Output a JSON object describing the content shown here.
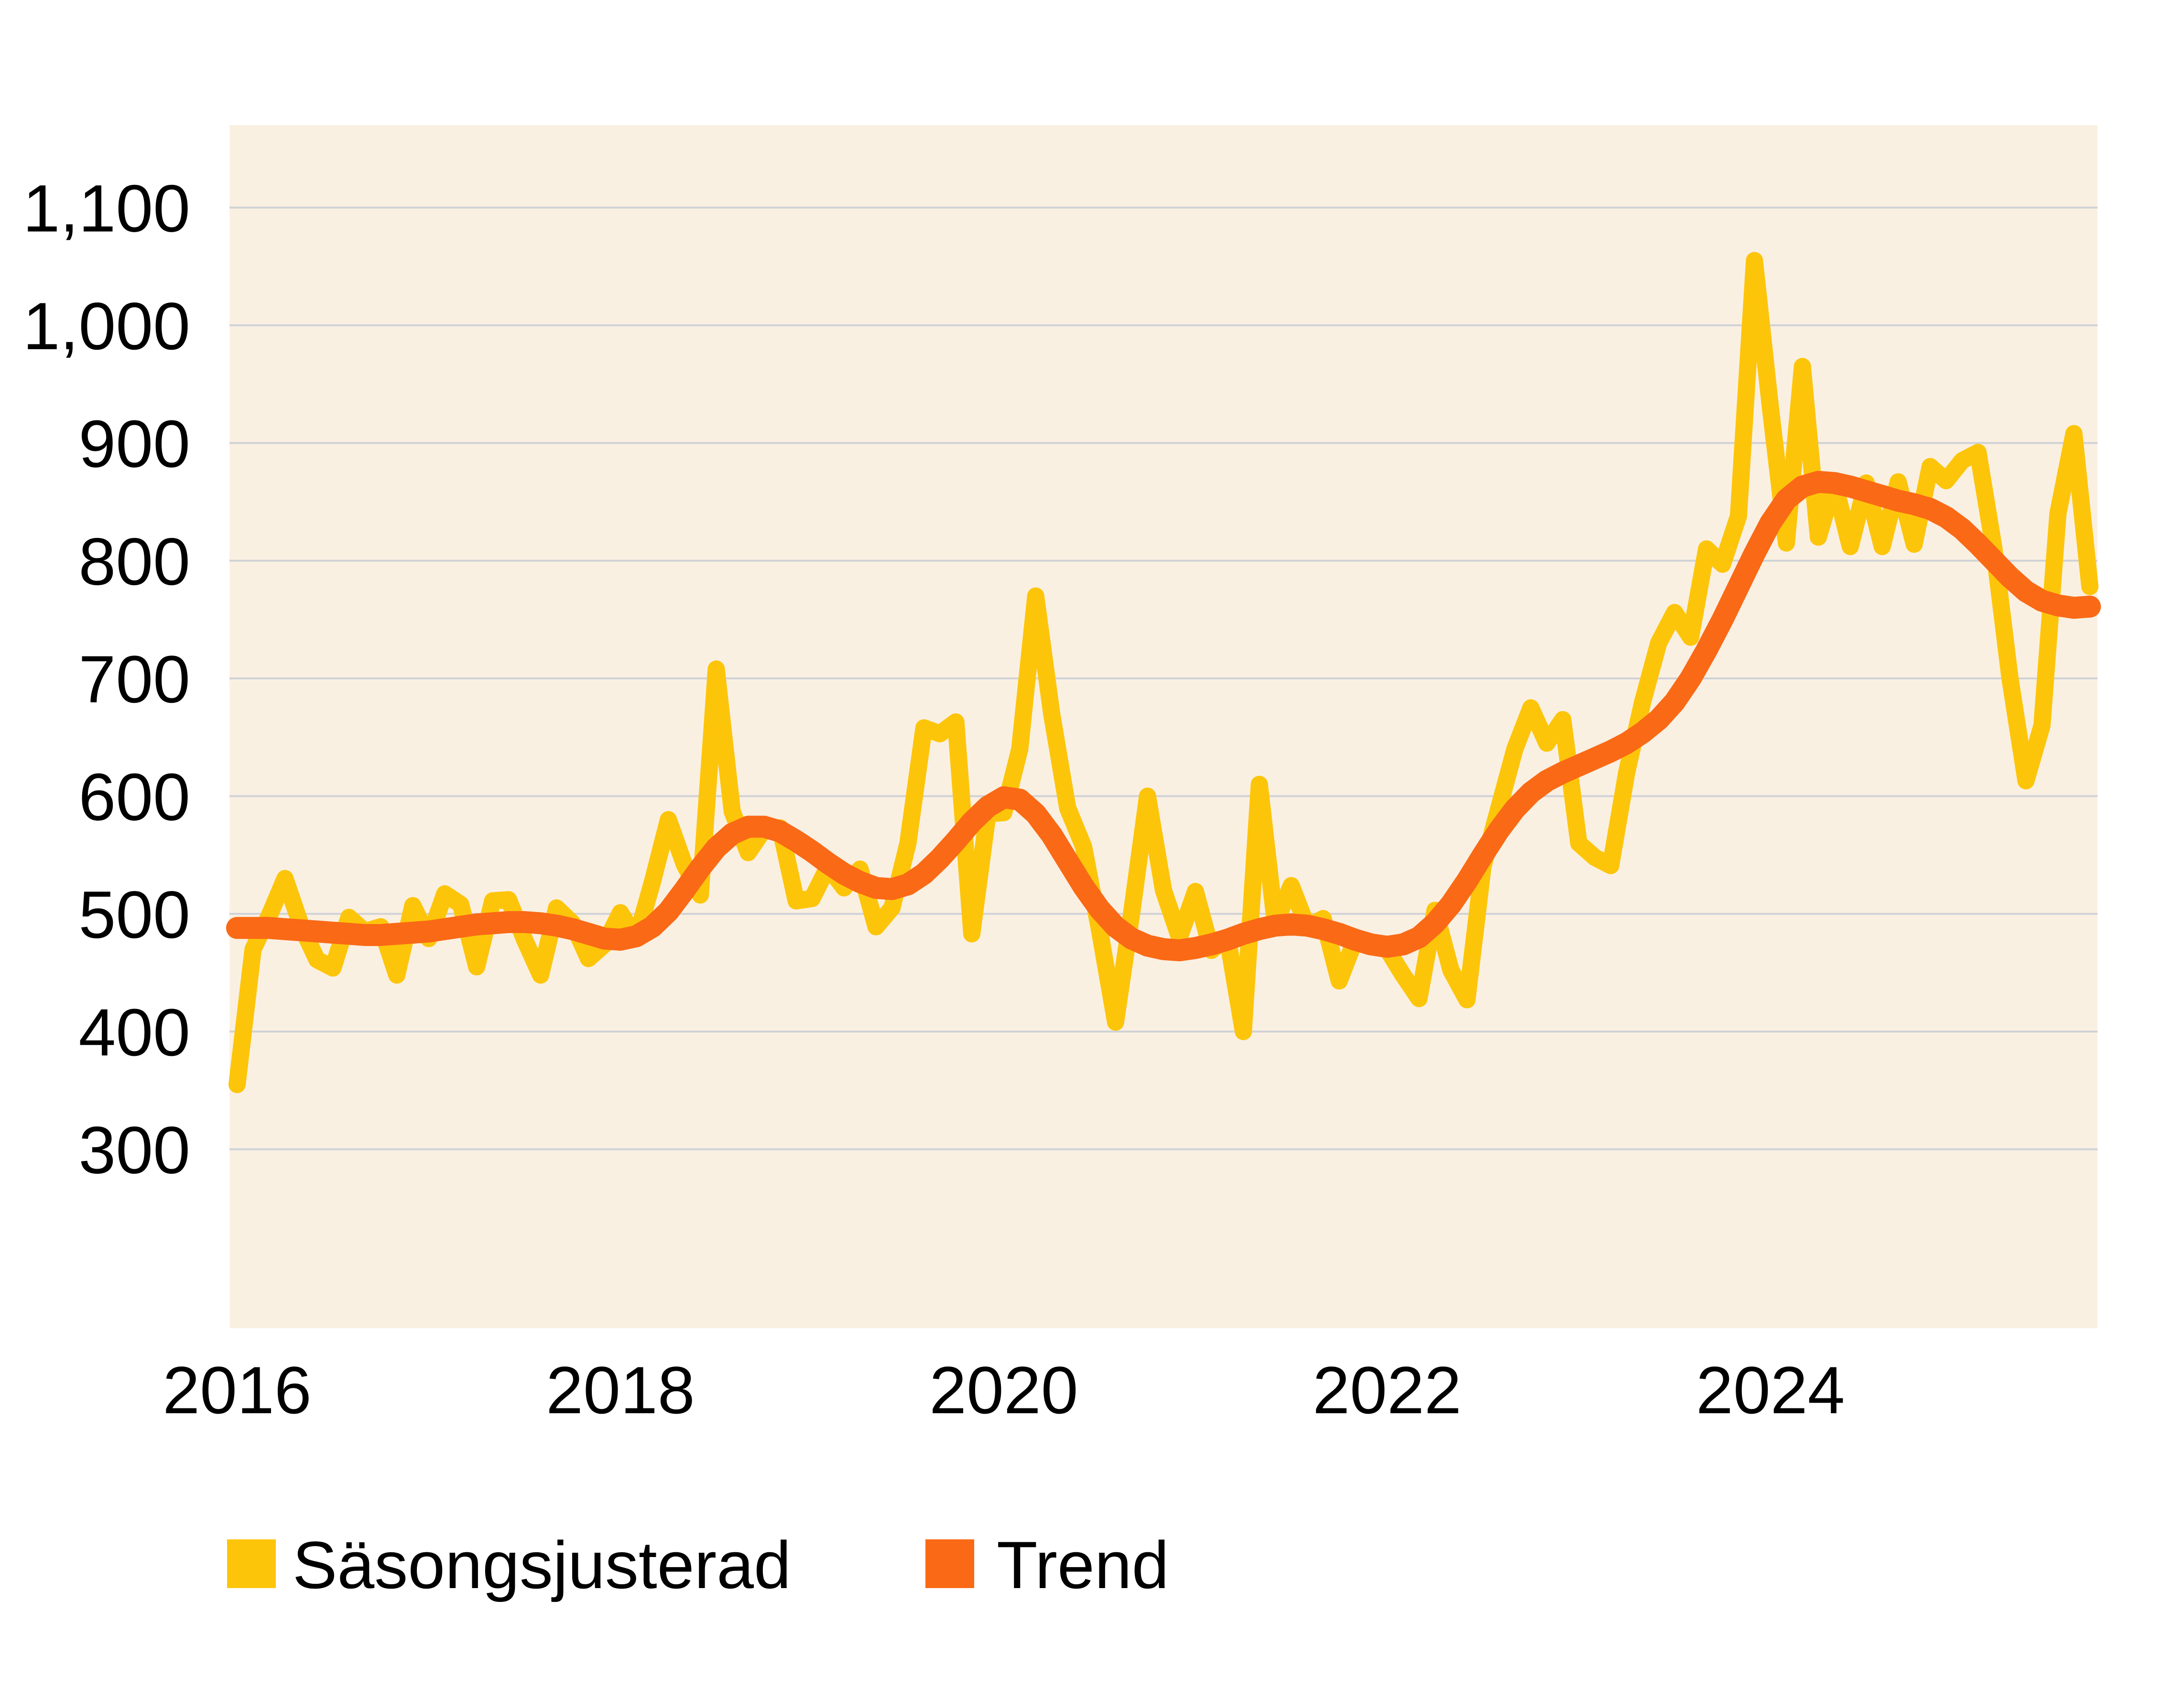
{
  "page": {
    "background_color": "#ffffff"
  },
  "legend": {
    "items": [
      {
        "label": "Säsongsjusterad",
        "color": "#FDC50A"
      },
      {
        "label": "Trend",
        "color": "#FA6915"
      }
    ]
  },
  "chart_data": {
    "type": "line",
    "title": "",
    "xlabel": "",
    "ylabel": "",
    "frequency": "monthly",
    "x_start": "2016-01",
    "x_end": "2025-09",
    "plot_background": "#FAF0E2",
    "gridline_color": "#CFD2D6",
    "grid": "horizontal-only",
    "ylim": [
      148,
      1170
    ],
    "y_ticks": [
      300,
      400,
      500,
      600,
      700,
      800,
      900,
      1000,
      1100
    ],
    "y_tick_labels": [
      "300",
      "400",
      "500",
      "600",
      "700",
      "800",
      "900",
      "1,000",
      "1,100"
    ],
    "x_ticks_month_index": [
      0,
      24,
      48,
      72,
      96
    ],
    "x_tick_labels": [
      "2016",
      "2018",
      "2020",
      "2022",
      "2024"
    ],
    "series": [
      {
        "name": "Säsongsjusterad",
        "color": "#FDC50A",
        "stroke_width": 36,
        "values": [
          355,
          470,
          498,
          530,
          490,
          461,
          454,
          497,
          485,
          489,
          448,
          507,
          479,
          517,
          508,
          455,
          511,
          512,
          478,
          448,
          505,
          492,
          462,
          474,
          501,
          479,
          527,
          580,
          542,
          516,
          708,
          587,
          552,
          572,
          573,
          511,
          513,
          540,
          522,
          538,
          489,
          505,
          560,
          658,
          653,
          663,
          483,
          585,
          586,
          640,
          770,
          670,
          590,
          557,
          486,
          408,
          500,
          600,
          520,
          480,
          519,
          469,
          480,
          400,
          610,
          492,
          524,
          489,
          496,
          443,
          478,
          475,
          470,
          448,
          428,
          503,
          452,
          427,
          540,
          590,
          640,
          675,
          645,
          665,
          560,
          548,
          541,
          620,
          680,
          730,
          756,
          735,
          810,
          797,
          838,
          1055,
          930,
          815,
          965,
          820,
          866,
          812,
          866,
          812,
          867,
          814,
          880,
          868,
          885,
          892,
          810,
          700,
          613,
          660,
          840,
          908,
          778
        ]
      },
      {
        "name": "Trend",
        "color": "#FA6915",
        "stroke_width": 46,
        "values": [
          488,
          488,
          488,
          487,
          486,
          485,
          484,
          483,
          482,
          482,
          483,
          484,
          485,
          487,
          489,
          491,
          492,
          493,
          493,
          492,
          490,
          487,
          483,
          479,
          478,
          481,
          489,
          502,
          520,
          539,
          556,
          568,
          574,
          574,
          570,
          562,
          553,
          543,
          534,
          527,
          522,
          521,
          525,
          534,
          547,
          562,
          578,
          591,
          599,
          597,
          585,
          567,
          545,
          523,
          504,
          489,
          479,
          473,
          470,
          469,
          471,
          474,
          478,
          483,
          487,
          490,
          491,
          490,
          487,
          483,
          478,
          474,
          472,
          474,
          480,
          492,
          508,
          528,
          550,
          571,
          589,
          603,
          613,
          620,
          626,
          632,
          638,
          645,
          654,
          665,
          680,
          700,
          724,
          750,
          778,
          806,
          832,
          852,
          863,
          867,
          866,
          863,
          859,
          855,
          851,
          848,
          844,
          837,
          827,
          814,
          800,
          786,
          774,
          766,
          762,
          760,
          761
        ]
      }
    ]
  }
}
